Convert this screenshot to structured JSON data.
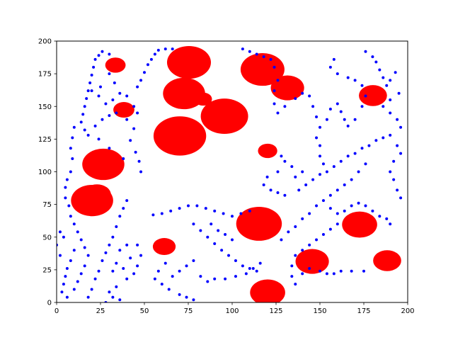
{
  "chart_data": {
    "type": "scatter",
    "xlim": [
      0,
      200
    ],
    "ylim": [
      0,
      200
    ],
    "xticks": [
      0,
      25,
      50,
      75,
      100,
      125,
      150,
      175,
      200
    ],
    "yticks": [
      0,
      25,
      50,
      75,
      100,
      125,
      150,
      175,
      200
    ],
    "grid": false,
    "circles": {
      "color": "#ff0000",
      "values": [
        [
          33.5,
          181.6,
          5.8
        ],
        [
          75.4,
          183.7,
          12.5
        ],
        [
          38.3,
          147.4,
          6
        ],
        [
          72.6,
          159.9,
          12
        ],
        [
          83.5,
          155.6,
          5
        ],
        [
          95.6,
          142.5,
          13.5
        ],
        [
          70.2,
          127.4,
          15
        ],
        [
          117.3,
          178.3,
          12.5
        ],
        [
          131.5,
          164.2,
          9.5
        ],
        [
          180.2,
          158.3,
          8
        ],
        [
          120.2,
          116,
          5.5
        ],
        [
          26.6,
          105.7,
          12
        ],
        [
          20.2,
          78,
          12
        ],
        [
          23,
          82.4,
          8
        ],
        [
          115.3,
          60.2,
          13
        ],
        [
          172.6,
          59.6,
          10
        ],
        [
          61.3,
          42.8,
          6.5
        ],
        [
          145.6,
          31.4,
          9.5
        ],
        [
          188.3,
          32,
          8
        ],
        [
          120.2,
          7.6,
          10
        ]
      ]
    },
    "points": {
      "color": "#0000ff",
      "values": [
        [
          24,
          189
        ],
        [
          26,
          192
        ],
        [
          30,
          190
        ],
        [
          22,
          186
        ],
        [
          21,
          180
        ],
        [
          20,
          174
        ],
        [
          19,
          168
        ],
        [
          18,
          162
        ],
        [
          17,
          156
        ],
        [
          16,
          150
        ],
        [
          15,
          144
        ],
        [
          14,
          138
        ],
        [
          16,
          132
        ],
        [
          18,
          128
        ],
        [
          22,
          135
        ],
        [
          26,
          140
        ],
        [
          30,
          143
        ],
        [
          34,
          145
        ],
        [
          28,
          152
        ],
        [
          32,
          155
        ],
        [
          24,
          158
        ],
        [
          20,
          162
        ],
        [
          25,
          165
        ],
        [
          30,
          175
        ],
        [
          33,
          168
        ],
        [
          36,
          160
        ],
        [
          40,
          158
        ],
        [
          44,
          150
        ],
        [
          46,
          145
        ],
        [
          40,
          140
        ],
        [
          44,
          133
        ],
        [
          42,
          124
        ],
        [
          45,
          115
        ],
        [
          47,
          108
        ],
        [
          48,
          100
        ],
        [
          38,
          110
        ],
        [
          30,
          118
        ],
        [
          24,
          125
        ],
        [
          10,
          134
        ],
        [
          9,
          126
        ],
        [
          8,
          118
        ],
        [
          9,
          110
        ],
        [
          8,
          100
        ],
        [
          6,
          94
        ],
        [
          5,
          88
        ],
        [
          5,
          80
        ],
        [
          7,
          74
        ],
        [
          8,
          66
        ],
        [
          10,
          60
        ],
        [
          12,
          54
        ],
        [
          14,
          48
        ],
        [
          16,
          42
        ],
        [
          18,
          36
        ],
        [
          10,
          40
        ],
        [
          8,
          32
        ],
        [
          6,
          26
        ],
        [
          5,
          20
        ],
        [
          4,
          14
        ],
        [
          3,
          8
        ],
        [
          6,
          4
        ],
        [
          10,
          10
        ],
        [
          12,
          16
        ],
        [
          14,
          22
        ],
        [
          16,
          28
        ],
        [
          18,
          4
        ],
        [
          20,
          10
        ],
        [
          22,
          18
        ],
        [
          24,
          24
        ],
        [
          26,
          32
        ],
        [
          28,
          38
        ],
        [
          30,
          44
        ],
        [
          32,
          50
        ],
        [
          34,
          58
        ],
        [
          36,
          66
        ],
        [
          38,
          72
        ],
        [
          40,
          78
        ],
        [
          34,
          30
        ],
        [
          38,
          26
        ],
        [
          42,
          34
        ],
        [
          44,
          22
        ],
        [
          40,
          18
        ],
        [
          46,
          28
        ],
        [
          48,
          36
        ],
        [
          46,
          44
        ],
        [
          40,
          44
        ],
        [
          36,
          40
        ],
        [
          32,
          24
        ],
        [
          30,
          8
        ],
        [
          32,
          4
        ],
        [
          34,
          12
        ],
        [
          36,
          2
        ],
        [
          28,
          0
        ],
        [
          2,
          54
        ],
        [
          4,
          50
        ],
        [
          0,
          44
        ],
        [
          2,
          36
        ],
        [
          52,
          182
        ],
        [
          54,
          186
        ],
        [
          56,
          190
        ],
        [
          58,
          193
        ],
        [
          62,
          194
        ],
        [
          66,
          194
        ],
        [
          50,
          176
        ],
        [
          48,
          170
        ],
        [
          46,
          165
        ],
        [
          55,
          67
        ],
        [
          60,
          68
        ],
        [
          65,
          70
        ],
        [
          70,
          72
        ],
        [
          75,
          74
        ],
        [
          80,
          74
        ],
        [
          85,
          72
        ],
        [
          90,
          70
        ],
        [
          95,
          68
        ],
        [
          100,
          66
        ],
        [
          105,
          68
        ],
        [
          110,
          70
        ],
        [
          78,
          60
        ],
        [
          82,
          55
        ],
        [
          86,
          50
        ],
        [
          90,
          45
        ],
        [
          94,
          40
        ],
        [
          98,
          36
        ],
        [
          102,
          32
        ],
        [
          106,
          28
        ],
        [
          110,
          26
        ],
        [
          114,
          24
        ],
        [
          88,
          60
        ],
        [
          92,
          55
        ],
        [
          96,
          52
        ],
        [
          100,
          48
        ],
        [
          62,
          30
        ],
        [
          58,
          24
        ],
        [
          56,
          18
        ],
        [
          60,
          14
        ],
        [
          64,
          10
        ],
        [
          70,
          6
        ],
        [
          74,
          4
        ],
        [
          78,
          2
        ],
        [
          66,
          20
        ],
        [
          70,
          24
        ],
        [
          74,
          28
        ],
        [
          78,
          32
        ],
        [
          82,
          20
        ],
        [
          86,
          16
        ],
        [
          90,
          18
        ],
        [
          96,
          18
        ],
        [
          102,
          20
        ],
        [
          108,
          22
        ],
        [
          112,
          26
        ],
        [
          116,
          30
        ],
        [
          106,
          194
        ],
        [
          110,
          192
        ],
        [
          114,
          190
        ],
        [
          118,
          188
        ],
        [
          122,
          186
        ],
        [
          124,
          180
        ],
        [
          126,
          170
        ],
        [
          124,
          162
        ],
        [
          124,
          152
        ],
        [
          126,
          145
        ],
        [
          130,
          150
        ],
        [
          136,
          156
        ],
        [
          140,
          160
        ],
        [
          144,
          158
        ],
        [
          146,
          150
        ],
        [
          148,
          142
        ],
        [
          150,
          134
        ],
        [
          154,
          140
        ],
        [
          156,
          148
        ],
        [
          160,
          152
        ],
        [
          162,
          146
        ],
        [
          164,
          140
        ],
        [
          166,
          135
        ],
        [
          170,
          140
        ],
        [
          174,
          150
        ],
        [
          176,
          158
        ],
        [
          174,
          166
        ],
        [
          170,
          170
        ],
        [
          166,
          172
        ],
        [
          160,
          175
        ],
        [
          156,
          180
        ],
        [
          158,
          186
        ],
        [
          176,
          192
        ],
        [
          180,
          188
        ],
        [
          182,
          184
        ],
        [
          184,
          178
        ],
        [
          186,
          172
        ],
        [
          188,
          166
        ],
        [
          190,
          170
        ],
        [
          193,
          176
        ],
        [
          195,
          160
        ],
        [
          190,
          155
        ],
        [
          186,
          150
        ],
        [
          190,
          145
        ],
        [
          194,
          140
        ],
        [
          196,
          134
        ],
        [
          148,
          126
        ],
        [
          150,
          120
        ],
        [
          150,
          112
        ],
        [
          152,
          106
        ],
        [
          154,
          100
        ],
        [
          158,
          104
        ],
        [
          162,
          108
        ],
        [
          166,
          112
        ],
        [
          170,
          114
        ],
        [
          174,
          118
        ],
        [
          178,
          120
        ],
        [
          182,
          124
        ],
        [
          186,
          126
        ],
        [
          190,
          128
        ],
        [
          194,
          120
        ],
        [
          196,
          114
        ],
        [
          192,
          108
        ],
        [
          190,
          100
        ],
        [
          192,
          94
        ],
        [
          194,
          86
        ],
        [
          196,
          80
        ],
        [
          176,
          106
        ],
        [
          172,
          100
        ],
        [
          168,
          94
        ],
        [
          164,
          90
        ],
        [
          160,
          86
        ],
        [
          156,
          82
        ],
        [
          152,
          78
        ],
        [
          148,
          74
        ],
        [
          144,
          68
        ],
        [
          140,
          64
        ],
        [
          136,
          58
        ],
        [
          132,
          54
        ],
        [
          128,
          48
        ],
        [
          136,
          96
        ],
        [
          140,
          100
        ],
        [
          134,
          104
        ],
        [
          130,
          108
        ],
        [
          128,
          112
        ],
        [
          126,
          100
        ],
        [
          120,
          96
        ],
        [
          118,
          90
        ],
        [
          122,
          86
        ],
        [
          126,
          84
        ],
        [
          130,
          82
        ],
        [
          138,
          86
        ],
        [
          142,
          90
        ],
        [
          146,
          94
        ],
        [
          150,
          98
        ],
        [
          156,
          72
        ],
        [
          160,
          68
        ],
        [
          164,
          70
        ],
        [
          168,
          74
        ],
        [
          172,
          76
        ],
        [
          176,
          74
        ],
        [
          180,
          70
        ],
        [
          184,
          66
        ],
        [
          188,
          64
        ],
        [
          190,
          60
        ],
        [
          160,
          60
        ],
        [
          156,
          56
        ],
        [
          152,
          52
        ],
        [
          148,
          48
        ],
        [
          144,
          44
        ],
        [
          140,
          40
        ],
        [
          136,
          36
        ],
        [
          134,
          28
        ],
        [
          134,
          20
        ],
        [
          136,
          14
        ],
        [
          140,
          22
        ],
        [
          144,
          26
        ],
        [
          150,
          24
        ],
        [
          154,
          22
        ],
        [
          158,
          22
        ],
        [
          162,
          24
        ],
        [
          168,
          24
        ],
        [
          175,
          24
        ]
      ]
    }
  }
}
